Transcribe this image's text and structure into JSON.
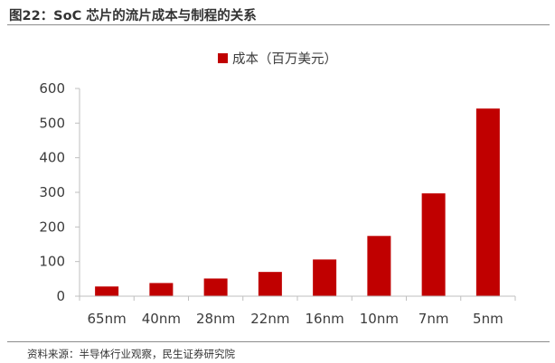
{
  "title": "图22：SoC 芯片的流片成本与制程的关系",
  "source": "资料来源：半导体行业观察，民生证券研究院",
  "colors": {
    "bar": "#c00000",
    "axis": "#bfbfbf",
    "rule": "#8c8c8c"
  },
  "chart_data": {
    "type": "bar",
    "categories": [
      "65nm",
      "40nm",
      "28nm",
      "22nm",
      "16nm",
      "10nm",
      "7nm",
      "5nm"
    ],
    "series": [
      {
        "name": "成本（百万美元）",
        "values": [
          28,
          38,
          51,
          70,
          106,
          174,
          297,
          542
        ]
      }
    ],
    "yticks": [
      0,
      100,
      200,
      300,
      400,
      500,
      600
    ],
    "ylim": [
      0,
      600
    ],
    "grid": false,
    "legend": "top-center"
  }
}
